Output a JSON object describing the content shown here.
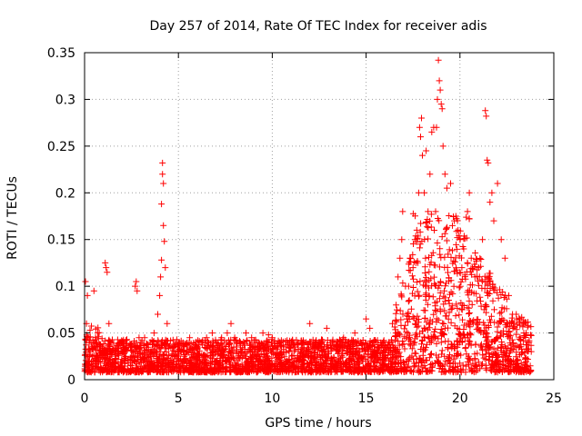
{
  "chart_data": {
    "type": "scatter",
    "title": "Day 257 of 2014, Rate Of TEC Index for receiver adis",
    "xlabel": "GPS time / hours",
    "ylabel": "ROTI / TECUs",
    "xlim": [
      0,
      25
    ],
    "ylim": [
      0,
      0.35
    ],
    "xticks": [
      0,
      5,
      10,
      15,
      20,
      25
    ],
    "xtick_labels": [
      "0",
      "5",
      "10",
      "15",
      "20",
      "25"
    ],
    "yticks": [
      0,
      0.05,
      0.1,
      0.15,
      0.2,
      0.25,
      0.3,
      0.35
    ],
    "ytick_labels": [
      "0",
      "0.05",
      "0.1",
      "0.15",
      "0.2",
      "0.25",
      "0.3",
      "0.35"
    ],
    "grid": true,
    "legend": "none",
    "marker": "plus",
    "color": "#ff0000",
    "series": [
      {
        "name": "ROTI",
        "points": [
          [
            0.05,
            0.105
          ],
          [
            0.1,
            0.06
          ],
          [
            0.15,
            0.09
          ],
          [
            0.2,
            0.045
          ],
          [
            0.3,
            0.03
          ],
          [
            0.4,
            0.025
          ],
          [
            0.5,
            0.095
          ],
          [
            0.6,
            0.04
          ],
          [
            0.7,
            0.05
          ],
          [
            0.8,
            0.035
          ],
          [
            1.0,
            0.03
          ],
          [
            1.1,
            0.125
          ],
          [
            1.15,
            0.12
          ],
          [
            1.2,
            0.115
          ],
          [
            1.3,
            0.06
          ],
          [
            1.4,
            0.04
          ],
          [
            1.6,
            0.03
          ],
          [
            1.8,
            0.028
          ],
          [
            2.0,
            0.03
          ],
          [
            2.2,
            0.025
          ],
          [
            2.5,
            0.035
          ],
          [
            2.7,
            0.1
          ],
          [
            2.75,
            0.105
          ],
          [
            2.8,
            0.095
          ],
          [
            2.9,
            0.045
          ],
          [
            3.0,
            0.04
          ],
          [
            3.2,
            0.045
          ],
          [
            3.5,
            0.04
          ],
          [
            3.7,
            0.05
          ],
          [
            3.9,
            0.07
          ],
          [
            4.0,
            0.09
          ],
          [
            4.05,
            0.11
          ],
          [
            4.1,
            0.128
          ],
          [
            4.1,
            0.188
          ],
          [
            4.15,
            0.232
          ],
          [
            4.15,
            0.22
          ],
          [
            4.2,
            0.21
          ],
          [
            4.2,
            0.165
          ],
          [
            4.25,
            0.148
          ],
          [
            4.3,
            0.12
          ],
          [
            4.4,
            0.06
          ],
          [
            4.6,
            0.035
          ],
          [
            4.8,
            0.03
          ],
          [
            5.0,
            0.04
          ],
          [
            5.3,
            0.03
          ],
          [
            5.6,
            0.045
          ],
          [
            5.9,
            0.035
          ],
          [
            6.2,
            0.04
          ],
          [
            6.5,
            0.045
          ],
          [
            6.8,
            0.05
          ],
          [
            7.0,
            0.04
          ],
          [
            7.3,
            0.045
          ],
          [
            7.6,
            0.05
          ],
          [
            7.8,
            0.06
          ],
          [
            8.0,
            0.045
          ],
          [
            8.3,
            0.04
          ],
          [
            8.6,
            0.05
          ],
          [
            8.9,
            0.045
          ],
          [
            9.2,
            0.04
          ],
          [
            9.5,
            0.05
          ],
          [
            9.8,
            0.048
          ],
          [
            10.0,
            0.045
          ],
          [
            10.3,
            0.035
          ],
          [
            10.6,
            0.03
          ],
          [
            10.9,
            0.03
          ],
          [
            11.2,
            0.035
          ],
          [
            11.5,
            0.03
          ],
          [
            11.8,
            0.04
          ],
          [
            12.0,
            0.06
          ],
          [
            12.3,
            0.035
          ],
          [
            12.6,
            0.035
          ],
          [
            12.9,
            0.055
          ],
          [
            13.2,
            0.04
          ],
          [
            13.5,
            0.035
          ],
          [
            13.8,
            0.045
          ],
          [
            14.1,
            0.035
          ],
          [
            14.4,
            0.05
          ],
          [
            14.7,
            0.04
          ],
          [
            15.0,
            0.065
          ],
          [
            15.2,
            0.055
          ],
          [
            15.4,
            0.03
          ],
          [
            15.7,
            0.03
          ],
          [
            16.0,
            0.035
          ],
          [
            16.2,
            0.04
          ],
          [
            16.4,
            0.06
          ],
          [
            16.6,
            0.08
          ],
          [
            16.7,
            0.11
          ],
          [
            16.8,
            0.13
          ],
          [
            16.9,
            0.15
          ],
          [
            16.95,
            0.18
          ],
          [
            17.1,
            0.1
          ],
          [
            17.3,
            0.085
          ],
          [
            17.5,
            0.12
          ],
          [
            17.6,
            0.15
          ],
          [
            17.7,
            0.16
          ],
          [
            17.8,
            0.2
          ],
          [
            17.85,
            0.27
          ],
          [
            17.9,
            0.26
          ],
          [
            17.95,
            0.28
          ],
          [
            18.0,
            0.24
          ],
          [
            18.1,
            0.2
          ],
          [
            18.2,
            0.245
          ],
          [
            18.3,
            0.18
          ],
          [
            18.4,
            0.22
          ],
          [
            18.5,
            0.265
          ],
          [
            18.6,
            0.27
          ],
          [
            18.7,
            0.18
          ],
          [
            18.75,
            0.27
          ],
          [
            18.8,
            0.3
          ],
          [
            18.85,
            0.342
          ],
          [
            18.9,
            0.32
          ],
          [
            18.95,
            0.31
          ],
          [
            19.0,
            0.295
          ],
          [
            19.05,
            0.29
          ],
          [
            19.1,
            0.25
          ],
          [
            19.2,
            0.22
          ],
          [
            19.3,
            0.205
          ],
          [
            19.5,
            0.21
          ],
          [
            19.7,
            0.17
          ],
          [
            19.9,
            0.16
          ],
          [
            20.0,
            0.15
          ],
          [
            20.1,
            0.12
          ],
          [
            20.2,
            0.14
          ],
          [
            20.4,
            0.18
          ],
          [
            20.5,
            0.2
          ],
          [
            20.6,
            0.13
          ],
          [
            20.8,
            0.11
          ],
          [
            21.0,
            0.12
          ],
          [
            21.2,
            0.15
          ],
          [
            21.35,
            0.288
          ],
          [
            21.4,
            0.282
          ],
          [
            21.45,
            0.235
          ],
          [
            21.5,
            0.232
          ],
          [
            21.6,
            0.19
          ],
          [
            21.7,
            0.2
          ],
          [
            21.8,
            0.17
          ],
          [
            22.0,
            0.21
          ],
          [
            22.2,
            0.15
          ],
          [
            22.4,
            0.13
          ],
          [
            22.6,
            0.09
          ],
          [
            22.8,
            0.07
          ],
          [
            23.0,
            0.07
          ],
          [
            23.2,
            0.065
          ],
          [
            23.4,
            0.05
          ],
          [
            23.6,
            0.04
          ],
          [
            23.8,
            0.03
          ]
        ]
      }
    ]
  }
}
